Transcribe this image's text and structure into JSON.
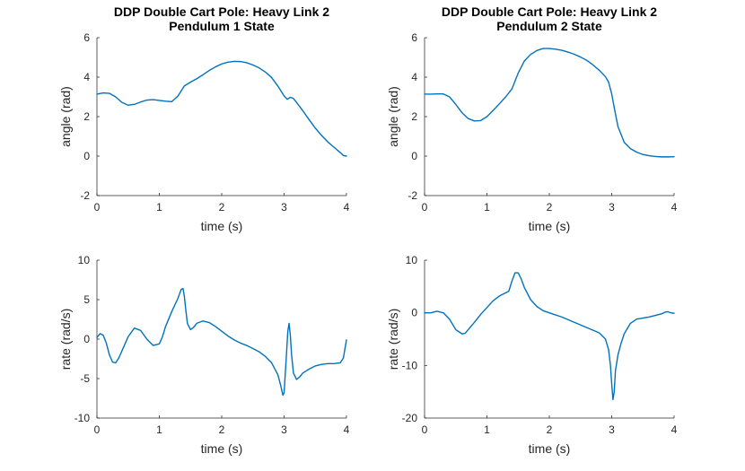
{
  "chart_data": [
    {
      "type": "line",
      "title": [
        "DDP Double Cart Pole: Heavy Link 2",
        "Pendulum 1 State"
      ],
      "xlabel": "time (s)",
      "ylabel": "angle (rad)",
      "xlim": [
        0,
        4
      ],
      "ylim": [
        -2,
        6
      ],
      "xticks": [
        0,
        1,
        2,
        3,
        4
      ],
      "yticks": [
        -2,
        0,
        2,
        4,
        6
      ],
      "grid": false,
      "series": [
        {
          "name": "pendulum-1-angle",
          "color": "#0072bd",
          "x": [
            0,
            0.1,
            0.2,
            0.3,
            0.4,
            0.5,
            0.6,
            0.7,
            0.8,
            0.9,
            1.0,
            1.1,
            1.2,
            1.3,
            1.4,
            1.5,
            1.6,
            1.7,
            1.8,
            1.9,
            2.0,
            2.1,
            2.2,
            2.3,
            2.4,
            2.5,
            2.6,
            2.7,
            2.8,
            2.9,
            3.0,
            3.05,
            3.1,
            3.15,
            3.2,
            3.3,
            3.4,
            3.5,
            3.6,
            3.7,
            3.8,
            3.9,
            3.95,
            4.0
          ],
          "y": [
            3.14,
            3.2,
            3.18,
            3.0,
            2.72,
            2.58,
            2.62,
            2.74,
            2.84,
            2.86,
            2.82,
            2.78,
            2.76,
            3.05,
            3.55,
            3.75,
            3.92,
            4.12,
            4.34,
            4.52,
            4.67,
            4.76,
            4.8,
            4.79,
            4.73,
            4.62,
            4.47,
            4.26,
            3.98,
            3.55,
            3.05,
            2.88,
            2.98,
            2.92,
            2.72,
            2.3,
            1.85,
            1.42,
            1.05,
            0.72,
            0.45,
            0.18,
            0.03,
            0.0
          ]
        }
      ]
    },
    {
      "type": "line",
      "title": [
        "DDP Double Cart Pole: Heavy Link 2",
        "Pendulum 2 State"
      ],
      "xlabel": "time (s)",
      "ylabel": "angle (rad)",
      "xlim": [
        0,
        4
      ],
      "ylim": [
        -2,
        6
      ],
      "xticks": [
        0,
        1,
        2,
        3,
        4
      ],
      "yticks": [
        -2,
        0,
        2,
        4,
        6
      ],
      "grid": false,
      "series": [
        {
          "name": "pendulum-2-angle",
          "color": "#0072bd",
          "x": [
            0,
            0.1,
            0.2,
            0.3,
            0.4,
            0.5,
            0.6,
            0.7,
            0.8,
            0.9,
            1.0,
            1.1,
            1.2,
            1.3,
            1.4,
            1.5,
            1.6,
            1.7,
            1.8,
            1.9,
            2.0,
            2.1,
            2.2,
            2.3,
            2.4,
            2.5,
            2.6,
            2.7,
            2.8,
            2.9,
            2.95,
            3.0,
            3.05,
            3.1,
            3.2,
            3.3,
            3.4,
            3.5,
            3.6,
            3.7,
            3.8,
            3.9,
            4.0
          ],
          "y": [
            3.14,
            3.14,
            3.15,
            3.15,
            3.0,
            2.62,
            2.2,
            1.9,
            1.78,
            1.8,
            2.0,
            2.32,
            2.65,
            3.0,
            3.4,
            4.2,
            4.82,
            5.15,
            5.35,
            5.45,
            5.45,
            5.42,
            5.36,
            5.27,
            5.16,
            5.02,
            4.85,
            4.62,
            4.35,
            4.02,
            3.75,
            3.15,
            2.3,
            1.5,
            0.7,
            0.38,
            0.2,
            0.08,
            0.02,
            -0.02,
            -0.04,
            -0.04,
            -0.03
          ]
        }
      ]
    },
    {
      "type": "line",
      "title": [],
      "xlabel": "time (s)",
      "ylabel": "rate (rad/s)",
      "xlim": [
        0,
        4
      ],
      "ylim": [
        -10,
        10
      ],
      "xticks": [
        0,
        1,
        2,
        3,
        4
      ],
      "yticks": [
        -10,
        -5,
        0,
        5,
        10
      ],
      "grid": false,
      "series": [
        {
          "name": "pendulum-1-rate",
          "color": "#0072bd",
          "x": [
            0,
            0.05,
            0.1,
            0.15,
            0.2,
            0.25,
            0.3,
            0.35,
            0.4,
            0.5,
            0.6,
            0.7,
            0.8,
            0.9,
            1.0,
            1.05,
            1.1,
            1.2,
            1.3,
            1.35,
            1.38,
            1.4,
            1.42,
            1.45,
            1.5,
            1.55,
            1.6,
            1.7,
            1.8,
            1.9,
            2.0,
            2.1,
            2.2,
            2.3,
            2.4,
            2.5,
            2.6,
            2.7,
            2.8,
            2.9,
            2.95,
            2.98,
            3.0,
            3.03,
            3.06,
            3.08,
            3.1,
            3.12,
            3.15,
            3.2,
            3.25,
            3.3,
            3.4,
            3.5,
            3.6,
            3.7,
            3.8,
            3.9,
            3.95,
            4.0
          ],
          "y": [
            0.2,
            0.7,
            0.5,
            -0.5,
            -2.0,
            -2.9,
            -3.0,
            -2.4,
            -1.5,
            0.3,
            1.4,
            1.1,
            0.0,
            -0.8,
            -0.6,
            0.3,
            1.6,
            3.5,
            5.2,
            6.3,
            6.4,
            5.5,
            4.0,
            2.0,
            1.2,
            1.5,
            2.0,
            2.3,
            2.1,
            1.6,
            1.0,
            0.4,
            -0.1,
            -0.5,
            -0.8,
            -1.2,
            -1.6,
            -2.2,
            -3.0,
            -4.5,
            -6.0,
            -7.1,
            -6.8,
            -3.0,
            1.0,
            2.0,
            0.5,
            -2.0,
            -4.3,
            -5.1,
            -4.8,
            -4.3,
            -3.8,
            -3.4,
            -3.2,
            -3.1,
            -3.1,
            -3.0,
            -2.4,
            -0.1
          ]
        }
      ]
    },
    {
      "type": "line",
      "title": [],
      "xlabel": "time (s)",
      "ylabel": "rate (rad/s)",
      "xlim": [
        0,
        4
      ],
      "ylim": [
        -20,
        10
      ],
      "xticks": [
        0,
        1,
        2,
        3,
        4
      ],
      "yticks": [
        -20,
        -10,
        0,
        10
      ],
      "grid": false,
      "series": [
        {
          "name": "pendulum-2-rate",
          "color": "#0072bd",
          "x": [
            0,
            0.1,
            0.2,
            0.3,
            0.4,
            0.5,
            0.6,
            0.65,
            0.7,
            0.8,
            0.9,
            1.0,
            1.1,
            1.2,
            1.3,
            1.35,
            1.4,
            1.45,
            1.5,
            1.55,
            1.6,
            1.7,
            1.8,
            1.9,
            2.0,
            2.2,
            2.4,
            2.6,
            2.8,
            2.9,
            2.95,
            2.98,
            3.0,
            3.02,
            3.04,
            3.05,
            3.06,
            3.08,
            3.1,
            3.15,
            3.2,
            3.3,
            3.4,
            3.5,
            3.6,
            3.7,
            3.8,
            3.85,
            3.9,
            3.95,
            4.0
          ],
          "y": [
            0.0,
            0.0,
            0.3,
            0.0,
            -1.2,
            -3.2,
            -4.0,
            -3.9,
            -3.2,
            -1.8,
            -0.3,
            1.0,
            2.3,
            3.2,
            3.8,
            4.1,
            6.0,
            7.6,
            7.6,
            6.4,
            4.8,
            2.5,
            1.2,
            0.4,
            0.0,
            -0.8,
            -1.8,
            -2.8,
            -3.8,
            -5.0,
            -7.0,
            -10.0,
            -13.5,
            -16.5,
            -15.0,
            -13.0,
            -11.0,
            -9.5,
            -8.0,
            -5.8,
            -4.0,
            -2.0,
            -1.2,
            -1.0,
            -0.8,
            -0.5,
            -0.2,
            0.1,
            0.2,
            0.0,
            -0.1
          ]
        }
      ]
    }
  ]
}
